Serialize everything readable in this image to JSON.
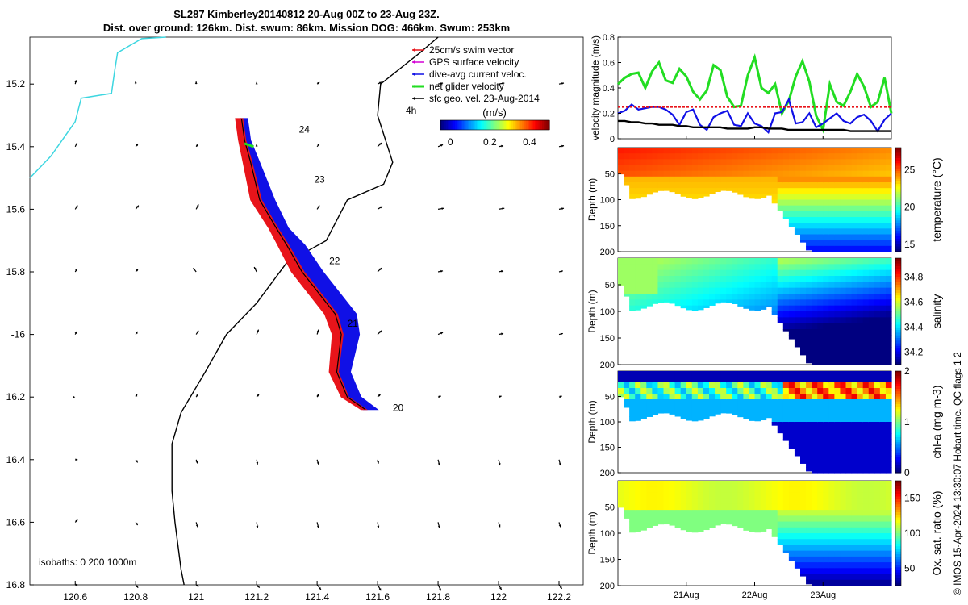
{
  "header": {
    "title_line1": "SL287 Kimberley20140812 20-Aug 00Z to 23-Aug 23Z.",
    "title_line2": "Dist. over ground: 126km. Dist. swum: 86km. Mission DOG: 466km. Swum: 253km"
  },
  "copyright": "© IMOS 15-Apr-2024 13:30:07 Hobart time. QC flags 1  2",
  "colors": {
    "swim": "#e8141a",
    "gps": "#d400d4",
    "current": "#1010e6",
    "net": "#22dd22",
    "sfc": "#000000",
    "coast": "#3dd6e0",
    "isobath": "#000000"
  },
  "chart_data": [
    {
      "type": "map",
      "x": [
        120.45,
        122.28
      ],
      "ylim": [
        -16.8,
        -15.05
      ],
      "xticks": [
        120.6,
        120.8,
        121,
        121.2,
        121.4,
        121.6,
        121.8,
        122,
        122.2
      ],
      "xtick_labels": [
        "120.6",
        "120.8",
        "121",
        "121.2",
        "121.4",
        "121.6",
        "121.8",
        "122",
        "122.2"
      ],
      "yticks": [
        -15.2,
        -15.4,
        -15.6,
        -15.8,
        -16,
        -16.2,
        -16.4,
        -16.6,
        -16.8
      ],
      "ytick_labels": [
        "15.2",
        "15.4",
        "15.6",
        "15.8",
        "-16",
        "16.2",
        "16.4",
        "16.6",
        "16.8"
      ],
      "legend": [
        "25cm/s swim vector",
        "GPS surface velocity",
        "dive-avg current veloc.",
        "net glider velocity",
        "sfc geo. vel. 23-Aug-2014"
      ],
      "scale_label": "4h",
      "colorbar_title": "(m/s)",
      "colorbar_ticks": [
        "0",
        "0.2",
        "0.4"
      ],
      "colorbar_range": [
        -0.05,
        0.5
      ],
      "isobath_label": "isobaths: 0   200   1000m",
      "day_labels": [
        "24",
        "23",
        "22",
        "21",
        "20"
      ],
      "day_positions": [
        [
          121.34,
          -15.355
        ],
        [
          121.39,
          -15.515
        ],
        [
          121.44,
          -15.775
        ],
        [
          121.5,
          -15.975
        ],
        [
          121.65,
          -16.245
        ]
      ],
      "track": [
        [
          121.56,
          -16.24
        ],
        [
          121.5,
          -16.2
        ],
        [
          121.465,
          -16.12
        ],
        [
          121.48,
          -16.0
        ],
        [
          121.46,
          -15.935
        ],
        [
          121.35,
          -15.8
        ],
        [
          121.3,
          -15.715
        ],
        [
          121.265,
          -15.66
        ],
        [
          121.21,
          -15.57
        ],
        [
          121.18,
          -15.45
        ],
        [
          121.16,
          -15.38
        ],
        [
          121.15,
          -15.31
        ]
      ],
      "track_width_current": [
        0.04,
        0.045,
        0.045,
        0.06,
        0.07,
        0.07,
        0.06,
        0.04,
        0.05,
        0.03,
        0.02,
        0.02
      ],
      "track_width_swim": [
        0.015,
        0.02,
        0.025,
        0.03,
        0.035,
        0.035,
        0.03,
        0.025,
        0.03,
        0.025,
        0.02,
        0.02
      ],
      "coastline": [
        [
          120.45,
          -15.5
        ],
        [
          120.52,
          -15.43
        ],
        [
          120.6,
          -15.32
        ],
        [
          120.62,
          -15.245
        ],
        [
          120.72,
          -15.23
        ],
        [
          120.73,
          -15.16
        ],
        [
          120.74,
          -15.1
        ],
        [
          120.82,
          -15.055
        ],
        [
          120.9,
          -15.05
        ]
      ],
      "isobath_0m": [
        [
          121.8,
          -15.05
        ],
        [
          121.74,
          -15.1
        ],
        [
          121.61,
          -15.2
        ],
        [
          121.6,
          -15.3
        ],
        [
          121.65,
          -15.45
        ],
        [
          121.62,
          -15.52
        ],
        [
          121.5,
          -15.57
        ],
        [
          121.43,
          -15.7
        ],
        [
          121.3,
          -15.77
        ],
        [
          121.2,
          -15.9
        ],
        [
          121.1,
          -16.0
        ],
        [
          121.03,
          -16.12
        ],
        [
          120.95,
          -16.25
        ],
        [
          120.92,
          -16.35
        ],
        [
          120.92,
          -16.5
        ],
        [
          120.93,
          -16.6
        ],
        [
          120.95,
          -16.75
        ],
        [
          120.96,
          -16.8
        ]
      ],
      "vector_lon": [
        120.6,
        120.8,
        121.0,
        121.2,
        121.4,
        121.6,
        121.8,
        122.0,
        122.2
      ],
      "vector_lat": [
        -15.2,
        -15.4,
        -15.6,
        -15.8,
        -16.0,
        -16.2,
        -16.4,
        -16.6,
        -16.8
      ],
      "vector_u": [
        [
          0.02,
          0.0,
          0.0,
          0.0,
          0.05,
          0.08,
          0.1,
          0.12,
          0.1
        ],
        [
          0.04,
          0.05,
          0.04,
          0.0,
          0.05,
          0.08,
          0.1,
          0.1,
          0.1
        ],
        [
          0.05,
          0.06,
          0.05,
          0.0,
          0.05,
          0.1,
          0.12,
          0.12,
          0.1
        ],
        [
          0.04,
          0.05,
          -0.06,
          -0.05,
          -0.04,
          0.08,
          0.1,
          0.1,
          0.08
        ],
        [
          0.03,
          0.04,
          0.05,
          0.04,
          0.03,
          0.08,
          0.1,
          0.1,
          0.08
        ],
        [
          0.0,
          0.03,
          0.04,
          0.05,
          0.03,
          0.06,
          0.06,
          0.06,
          0.06
        ],
        [
          0.05,
          0.04,
          0.03,
          0.02,
          0.03,
          0.02,
          0.03,
          0.03,
          0.03
        ],
        [
          0.05,
          0.04,
          0.03,
          0.02,
          0.03,
          0.02,
          0.03,
          0.03,
          0.03
        ],
        [
          0.05,
          0.05,
          0.05,
          0.06,
          0.08,
          0.07,
          0.06,
          0.06,
          0.06
        ]
      ],
      "vector_v": [
        [
          0.08,
          0.06,
          0.05,
          0.04,
          0.04,
          0.04,
          0.02,
          0.02,
          0.02
        ],
        [
          0.08,
          0.06,
          0.05,
          0.05,
          0.06,
          0.08,
          0.04,
          0.02,
          0.02
        ],
        [
          0.08,
          0.08,
          0.1,
          0.08,
          0.08,
          0.06,
          0.02,
          0.02,
          0.02
        ],
        [
          0.06,
          0.06,
          0.08,
          0.1,
          0.12,
          0.08,
          0.02,
          0.02,
          0.02
        ],
        [
          0.06,
          0.06,
          0.08,
          0.1,
          0.1,
          0.08,
          0.04,
          0.02,
          0.02
        ],
        [
          0.0,
          0.06,
          0.06,
          0.06,
          0.06,
          0.06,
          0.02,
          0.02,
          0.02
        ],
        [
          0.0,
          -0.06,
          -0.08,
          -0.1,
          -0.1,
          -0.08,
          -0.12,
          -0.12,
          -0.12
        ],
        [
          0.05,
          -0.06,
          -0.1,
          -0.12,
          -0.12,
          -0.12,
          -0.12,
          -0.1,
          -0.1
        ],
        [
          0.0,
          -0.06,
          -0.04,
          -0.06,
          -0.1,
          -0.12,
          -0.12,
          -0.1,
          -0.08
        ]
      ]
    },
    {
      "type": "line",
      "ylabel": "velocity magnitude (m/s)",
      "ylim": [
        0,
        0.8
      ],
      "yticks": [
        0,
        0.2,
        0.4,
        0.6,
        0.8
      ],
      "ytick_labels": [
        "0",
        "0.2",
        "0.4",
        "0.6",
        "0.8"
      ],
      "x_days": [
        0,
        0.1,
        0.2,
        0.3,
        0.4,
        0.5,
        0.6,
        0.7,
        0.8,
        0.9,
        1.0,
        1.1,
        1.2,
        1.3,
        1.4,
        1.5,
        1.6,
        1.7,
        1.8,
        1.9,
        2.0,
        2.1,
        2.2,
        2.3,
        2.4,
        2.5,
        2.6,
        2.7,
        2.8,
        2.9,
        3.0,
        3.1,
        3.2,
        3.3,
        3.4,
        3.5,
        3.6,
        3.7,
        3.8,
        3.9,
        4.0
      ],
      "series": [
        {
          "name": "net glider velocity",
          "values": [
            0.43,
            0.48,
            0.51,
            0.52,
            0.4,
            0.53,
            0.6,
            0.46,
            0.44,
            0.55,
            0.49,
            0.37,
            0.31,
            0.38,
            0.58,
            0.54,
            0.33,
            0.25,
            0.26,
            0.5,
            0.64,
            0.4,
            0.36,
            0.43,
            0.2,
            0.3,
            0.49,
            0.61,
            0.45,
            0.18,
            0.07,
            0.43,
            0.29,
            0.26,
            0.37,
            0.51,
            0.41,
            0.25,
            0.29,
            0.48,
            0.2
          ]
        },
        {
          "name": "dive-avg current veloc.",
          "values": [
            0.2,
            0.22,
            0.27,
            0.23,
            0.24,
            0.25,
            0.25,
            0.23,
            0.19,
            0.11,
            0.21,
            0.23,
            0.11,
            0.07,
            0.17,
            0.2,
            0.22,
            0.11,
            0.1,
            0.2,
            0.12,
            0.1,
            0.05,
            0.2,
            0.21,
            0.31,
            0.12,
            0.13,
            0.2,
            0.09,
            0.12,
            0.16,
            0.2,
            0.14,
            0.12,
            0.17,
            0.19,
            0.14,
            0.06,
            0.15,
            0.2
          ]
        },
        {
          "name": "25cm/s swim vector",
          "values": [
            0.25,
            0.25,
            0.25,
            0.25,
            0.25,
            0.25,
            0.25,
            0.25,
            0.25,
            0.25,
            0.25,
            0.25,
            0.25,
            0.25,
            0.25,
            0.25,
            0.25,
            0.25,
            0.25,
            0.25,
            0.25,
            0.25,
            0.25,
            0.25,
            0.25,
            0.25,
            0.25,
            0.25,
            0.25,
            0.25,
            0.25,
            0.25,
            0.25,
            0.25,
            0.25,
            0.25,
            0.25,
            0.25,
            0.25,
            0.25,
            0.25
          ]
        },
        {
          "name": "sfc geo. vel.",
          "values": [
            0.14,
            0.14,
            0.13,
            0.13,
            0.12,
            0.12,
            0.11,
            0.11,
            0.11,
            0.1,
            0.1,
            0.09,
            0.09,
            0.09,
            0.09,
            0.09,
            0.08,
            0.08,
            0.08,
            0.08,
            0.09,
            0.09,
            0.08,
            0.08,
            0.08,
            0.07,
            0.07,
            0.07,
            0.07,
            0.07,
            0.07,
            0.07,
            0.07,
            0.07,
            0.06,
            0.06,
            0.06,
            0.06,
            0.06,
            0.06,
            0.06
          ]
        }
      ]
    },
    {
      "type": "heatmap",
      "name": "temperature",
      "colorbar_label": "temperature (°C)",
      "colorbar_ticks": [
        "15",
        "20",
        "25"
      ],
      "colorbar_values": [
        15,
        20,
        25
      ],
      "crange": [
        14,
        28
      ],
      "ylabel": "Depth (m)",
      "yticks": [
        "50",
        "100",
        "150",
        "200"
      ],
      "ylim": [
        0,
        200
      ]
    },
    {
      "type": "heatmap",
      "name": "salinity",
      "colorbar_label": "salinity",
      "colorbar_ticks": [
        "34.2",
        "34.4",
        "34.6",
        "34.8"
      ],
      "colorbar_values": [
        34.2,
        34.4,
        34.6,
        34.8
      ],
      "crange": [
        34.1,
        34.95
      ],
      "ylabel": "Depth (m)",
      "yticks": [
        "50",
        "100",
        "150",
        "200"
      ],
      "ylim": [
        0,
        200
      ]
    },
    {
      "type": "heatmap",
      "name": "chl-a",
      "colorbar_label": "chl-a (mg m-3)",
      "colorbar_ticks": [
        "0",
        "1",
        "2"
      ],
      "colorbar_values": [
        0,
        1,
        2
      ],
      "crange": [
        0,
        2
      ],
      "ylabel": "Depth (m)",
      "yticks": [
        "50",
        "100",
        "150",
        "200"
      ],
      "ylim": [
        0,
        200
      ]
    },
    {
      "type": "heatmap",
      "name": "oxygen",
      "colorbar_label": "Ox. sat. ratio (%)",
      "colorbar_ticks": [
        "50",
        "100",
        "150"
      ],
      "colorbar_values": [
        50,
        100,
        150
      ],
      "crange": [
        25,
        175
      ],
      "ylabel": "Depth (m)",
      "yticks": [
        "50",
        "100",
        "150",
        "200"
      ],
      "ylim": [
        0,
        200
      ],
      "xtick_labels": [
        "21Aug",
        "22Aug",
        "23Aug"
      ],
      "xtick_days": [
        1,
        2,
        3
      ]
    }
  ]
}
